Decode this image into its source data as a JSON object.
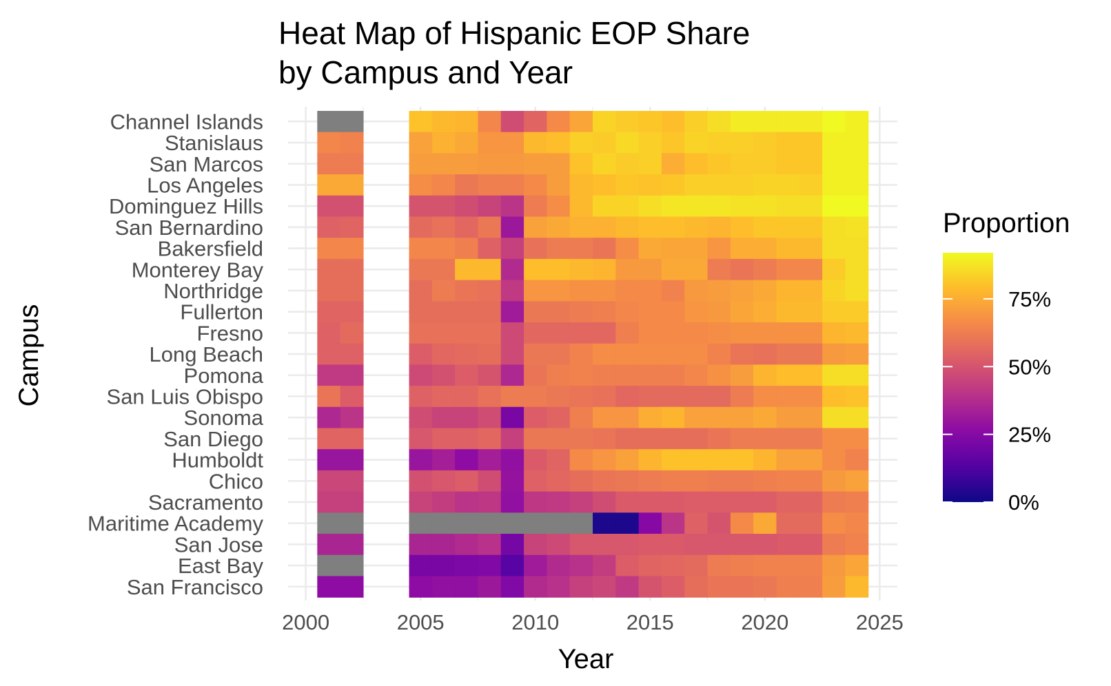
{
  "title_line1": "Heat Map of Hispanic EOP Share",
  "title_line2": "by Campus and Year",
  "chart_data": {
    "type": "heatmap",
    "xlabel": "Year",
    "ylabel": "Campus",
    "xlim": [
      1999.5,
      2025.5
    ],
    "x_ticks": [
      2000,
      2005,
      2010,
      2015,
      2020,
      2025
    ],
    "x_tick_labels": [
      "2000",
      "2005",
      "2010",
      "2015",
      "2020",
      "2025"
    ],
    "grid": true,
    "legend": {
      "title": "Proportion",
      "position": "right",
      "range": [
        0,
        0.92
      ],
      "ticks": [
        0,
        0.25,
        0.5,
        0.75
      ],
      "tick_labels": [
        "0%",
        "25%",
        "50%",
        "75%"
      ]
    },
    "colors": {
      "na": "#7f7f7f",
      "grid": "#ebebeb",
      "palette": "plasma"
    },
    "years": [
      2001,
      2002,
      2005,
      2006,
      2007,
      2008,
      2009,
      2010,
      2011,
      2012,
      2013,
      2014,
      2015,
      2016,
      2017,
      2018,
      2019,
      2020,
      2021,
      2022,
      2023,
      2024
    ],
    "campuses": [
      "Channel Islands",
      "Stanislaus",
      "San Marcos",
      "Los Angeles",
      "Dominguez Hills",
      "San Bernardino",
      "Bakersfield",
      "Monterey Bay",
      "Northridge",
      "Fullerton",
      "Fresno",
      "Long Beach",
      "Pomona",
      "San Luis Obispo",
      "Sonoma",
      "San Diego",
      "Humboldt",
      "Chico",
      "Sacramento",
      "Maritime Academy",
      "San Jose",
      "East Bay",
      "San Francisco"
    ],
    "values": [
      [
        null,
        null,
        0.8,
        0.78,
        0.77,
        0.65,
        0.48,
        0.55,
        0.66,
        0.73,
        0.84,
        0.82,
        0.81,
        0.79,
        0.83,
        0.86,
        0.89,
        0.89,
        0.89,
        0.89,
        0.92,
        0.9
      ],
      [
        0.65,
        0.64,
        0.72,
        0.76,
        0.74,
        0.69,
        0.69,
        0.78,
        0.79,
        0.83,
        0.82,
        0.85,
        0.83,
        0.81,
        0.84,
        0.83,
        0.83,
        0.82,
        0.81,
        0.81,
        0.9,
        0.9
      ],
      [
        0.62,
        0.62,
        0.71,
        0.71,
        0.71,
        0.7,
        0.7,
        0.71,
        0.71,
        0.8,
        0.84,
        0.82,
        0.83,
        0.75,
        0.79,
        0.81,
        0.82,
        0.82,
        0.81,
        0.81,
        0.9,
        0.9
      ],
      [
        0.74,
        0.74,
        0.67,
        0.65,
        0.61,
        0.63,
        0.63,
        0.66,
        0.71,
        0.78,
        0.79,
        0.81,
        0.8,
        0.81,
        0.83,
        0.83,
        0.83,
        0.84,
        0.84,
        0.83,
        0.9,
        0.9
      ],
      [
        0.49,
        0.49,
        0.5,
        0.5,
        0.48,
        0.45,
        0.4,
        0.62,
        0.67,
        0.78,
        0.84,
        0.84,
        0.86,
        0.88,
        0.88,
        0.88,
        0.87,
        0.87,
        0.86,
        0.86,
        0.92,
        0.92
      ],
      [
        0.54,
        0.55,
        0.57,
        0.59,
        0.56,
        0.61,
        0.31,
        0.72,
        0.74,
        0.76,
        0.76,
        0.78,
        0.79,
        0.79,
        0.78,
        0.77,
        0.79,
        0.81,
        0.81,
        0.81,
        0.86,
        0.87
      ],
      [
        0.65,
        0.65,
        0.65,
        0.65,
        0.63,
        0.54,
        0.44,
        0.59,
        0.62,
        0.62,
        0.6,
        0.67,
        0.74,
        0.73,
        0.73,
        0.69,
        0.75,
        0.75,
        0.78,
        0.78,
        0.86,
        0.86
      ],
      [
        0.58,
        0.58,
        0.61,
        0.61,
        0.78,
        0.78,
        0.37,
        0.79,
        0.79,
        0.78,
        0.77,
        0.7,
        0.7,
        0.74,
        0.74,
        0.62,
        0.6,
        0.62,
        0.65,
        0.65,
        0.82,
        0.86
      ],
      [
        0.58,
        0.58,
        0.58,
        0.62,
        0.6,
        0.59,
        0.42,
        0.69,
        0.69,
        0.68,
        0.68,
        0.66,
        0.66,
        0.64,
        0.7,
        0.71,
        0.72,
        0.74,
        0.77,
        0.77,
        0.84,
        0.86
      ],
      [
        0.55,
        0.55,
        0.58,
        0.58,
        0.58,
        0.58,
        0.32,
        0.61,
        0.61,
        0.62,
        0.63,
        0.65,
        0.66,
        0.66,
        0.69,
        0.7,
        0.73,
        0.75,
        0.78,
        0.78,
        0.82,
        0.82
      ],
      [
        0.54,
        0.57,
        0.59,
        0.59,
        0.59,
        0.59,
        0.47,
        0.56,
        0.56,
        0.56,
        0.56,
        0.63,
        0.66,
        0.66,
        0.66,
        0.67,
        0.68,
        0.68,
        0.68,
        0.68,
        0.77,
        0.78
      ],
      [
        0.54,
        0.54,
        0.53,
        0.56,
        0.57,
        0.58,
        0.47,
        0.61,
        0.61,
        0.64,
        0.67,
        0.67,
        0.67,
        0.67,
        0.67,
        0.64,
        0.6,
        0.59,
        0.61,
        0.61,
        0.7,
        0.71
      ],
      [
        0.42,
        0.42,
        0.47,
        0.49,
        0.53,
        0.5,
        0.36,
        0.6,
        0.63,
        0.64,
        0.63,
        0.63,
        0.63,
        0.63,
        0.65,
        0.68,
        0.71,
        0.77,
        0.79,
        0.79,
        0.86,
        0.86
      ],
      [
        0.6,
        0.53,
        0.54,
        0.56,
        0.56,
        0.59,
        0.62,
        0.62,
        0.61,
        0.6,
        0.59,
        0.56,
        0.57,
        0.57,
        0.57,
        0.57,
        0.62,
        0.67,
        0.67,
        0.67,
        0.79,
        0.8
      ],
      [
        0.36,
        0.4,
        0.48,
        0.45,
        0.45,
        0.48,
        0.22,
        0.53,
        0.55,
        0.63,
        0.69,
        0.69,
        0.75,
        0.77,
        0.72,
        0.72,
        0.72,
        0.74,
        0.71,
        0.71,
        0.86,
        0.86
      ],
      [
        0.55,
        0.55,
        0.51,
        0.54,
        0.54,
        0.56,
        0.44,
        0.61,
        0.61,
        0.61,
        0.6,
        0.58,
        0.58,
        0.58,
        0.58,
        0.6,
        0.62,
        0.62,
        0.62,
        0.62,
        0.67,
        0.67
      ],
      [
        0.3,
        0.3,
        0.3,
        0.33,
        0.27,
        0.33,
        0.28,
        0.52,
        0.55,
        0.66,
        0.69,
        0.72,
        0.77,
        0.8,
        0.8,
        0.8,
        0.8,
        0.77,
        0.72,
        0.72,
        0.67,
        0.64
      ],
      [
        0.46,
        0.46,
        0.49,
        0.51,
        0.53,
        0.48,
        0.29,
        0.54,
        0.56,
        0.58,
        0.6,
        0.61,
        0.62,
        0.63,
        0.63,
        0.62,
        0.62,
        0.63,
        0.64,
        0.64,
        0.7,
        0.72
      ],
      [
        0.44,
        0.44,
        0.45,
        0.43,
        0.4,
        0.41,
        0.28,
        0.41,
        0.42,
        0.44,
        0.48,
        0.52,
        0.52,
        0.52,
        0.53,
        0.53,
        0.53,
        0.53,
        0.55,
        0.55,
        0.62,
        0.63
      ],
      [
        null,
        null,
        null,
        null,
        null,
        null,
        null,
        null,
        null,
        null,
        0.03,
        0.03,
        0.25,
        0.4,
        0.54,
        0.5,
        0.66,
        0.74,
        0.57,
        0.57,
        0.67,
        0.65
      ],
      [
        0.35,
        0.35,
        0.35,
        0.35,
        0.37,
        0.39,
        0.21,
        0.45,
        0.47,
        0.51,
        0.51,
        0.51,
        0.52,
        0.52,
        0.51,
        0.51,
        0.51,
        0.51,
        0.52,
        0.52,
        0.62,
        0.64
      ],
      [
        null,
        null,
        0.22,
        0.22,
        0.23,
        0.24,
        0.14,
        0.32,
        0.37,
        0.39,
        0.43,
        0.53,
        0.55,
        0.56,
        0.57,
        0.62,
        0.63,
        0.64,
        0.64,
        0.64,
        0.7,
        0.73
      ],
      [
        0.27,
        0.27,
        0.27,
        0.28,
        0.28,
        0.31,
        0.24,
        0.37,
        0.39,
        0.44,
        0.46,
        0.42,
        0.5,
        0.53,
        0.58,
        0.6,
        0.6,
        0.61,
        0.63,
        0.63,
        0.71,
        0.78
      ]
    ]
  }
}
